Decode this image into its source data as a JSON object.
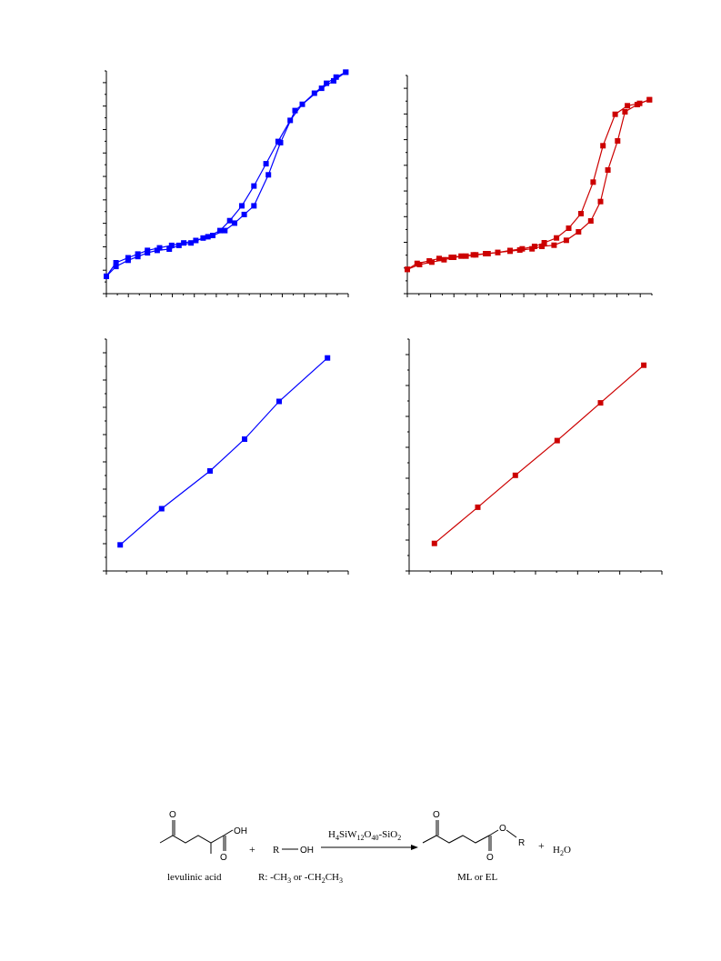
{
  "page": {
    "background": "#ffffff"
  },
  "chart_data": [
    {
      "type": "line",
      "title": "",
      "xlabel": "",
      "ylabel": "",
      "xlim": [
        0,
        1.0
      ],
      "ylim": [
        0,
        9
      ],
      "grid": false,
      "ticks_labeled": false,
      "color": "#0000ff",
      "marker": "square",
      "series": [
        {
          "values": [
            [
              0.0,
              0.7
            ],
            [
              0.04,
              1.25
            ],
            [
              0.09,
              1.45
            ],
            [
              0.13,
              1.6
            ],
            [
              0.17,
              1.75
            ],
            [
              0.22,
              1.85
            ],
            [
              0.27,
              1.95
            ],
            [
              0.32,
              2.05
            ],
            [
              0.37,
              2.15
            ],
            [
              0.42,
              2.3
            ],
            [
              0.47,
              2.55
            ],
            [
              0.51,
              2.95
            ],
            [
              0.56,
              3.55
            ],
            [
              0.61,
              4.35
            ],
            [
              0.66,
              5.25
            ],
            [
              0.71,
              6.15
            ],
            [
              0.76,
              7.0
            ],
            [
              0.81,
              7.65
            ],
            [
              0.86,
              8.1
            ],
            [
              0.91,
              8.5
            ],
            [
              0.95,
              8.75
            ],
            [
              0.99,
              8.95
            ]
          ]
        },
        {
          "values": [
            [
              0.99,
              8.95
            ],
            [
              0.94,
              8.6
            ],
            [
              0.89,
              8.3
            ],
            [
              0.78,
              7.4
            ],
            [
              0.72,
              6.1
            ],
            [
              0.67,
              4.8
            ],
            [
              0.61,
              3.55
            ],
            [
              0.57,
              3.2
            ],
            [
              0.53,
              2.85
            ],
            [
              0.49,
              2.55
            ],
            [
              0.44,
              2.35
            ],
            [
              0.4,
              2.25
            ],
            [
              0.35,
              2.05
            ],
            [
              0.3,
              1.95
            ],
            [
              0.26,
              1.8
            ],
            [
              0.21,
              1.75
            ],
            [
              0.17,
              1.65
            ],
            [
              0.13,
              1.5
            ],
            [
              0.09,
              1.35
            ],
            [
              0.04,
              1.1
            ],
            [
              0.0,
              0.7
            ]
          ]
        }
      ]
    },
    {
      "type": "line",
      "title": "",
      "xlabel": "",
      "ylabel": "",
      "xlim": [
        0,
        1.0
      ],
      "ylim": [
        0,
        9
      ],
      "grid": false,
      "ticks_labeled": false,
      "color": "#cc0000",
      "marker": "square",
      "series": [
        {
          "values": [
            [
              0.0,
              1.0
            ],
            [
              0.04,
              1.25
            ],
            [
              0.09,
              1.35
            ],
            [
              0.13,
              1.45
            ],
            [
              0.18,
              1.5
            ],
            [
              0.22,
              1.55
            ],
            [
              0.27,
              1.6
            ],
            [
              0.32,
              1.65
            ],
            [
              0.37,
              1.7
            ],
            [
              0.42,
              1.78
            ],
            [
              0.47,
              1.85
            ],
            [
              0.52,
              1.95
            ],
            [
              0.56,
              2.1
            ],
            [
              0.61,
              2.3
            ],
            [
              0.66,
              2.7
            ],
            [
              0.71,
              3.3
            ],
            [
              0.76,
              4.6
            ],
            [
              0.8,
              6.1
            ],
            [
              0.85,
              7.4
            ],
            [
              0.9,
              7.75
            ],
            [
              0.95,
              7.85
            ],
            [
              0.99,
              8.0
            ]
          ]
        },
        {
          "values": [
            [
              0.99,
              8.0
            ],
            [
              0.94,
              7.8
            ],
            [
              0.89,
              7.5
            ],
            [
              0.86,
              6.3
            ],
            [
              0.82,
              5.1
            ],
            [
              0.79,
              3.8
            ],
            [
              0.75,
              3.0
            ],
            [
              0.7,
              2.55
            ],
            [
              0.65,
              2.2
            ],
            [
              0.6,
              2.0
            ],
            [
              0.55,
              1.95
            ],
            [
              0.51,
              1.85
            ],
            [
              0.46,
              1.8
            ],
            [
              0.42,
              1.75
            ],
            [
              0.37,
              1.7
            ],
            [
              0.33,
              1.65
            ],
            [
              0.28,
              1.6
            ],
            [
              0.24,
              1.55
            ],
            [
              0.19,
              1.5
            ],
            [
              0.15,
              1.4
            ],
            [
              0.1,
              1.3
            ],
            [
              0.05,
              1.2
            ],
            [
              0.0,
              1.0
            ]
          ]
        }
      ]
    },
    {
      "type": "line",
      "title": "",
      "xlabel": "",
      "ylabel": "",
      "xlim": [
        0,
        0.35
      ],
      "ylim": [
        0,
        8
      ],
      "grid": false,
      "ticks_labeled": false,
      "color": "#0000ff",
      "marker": "square",
      "series": [
        {
          "values": [
            [
              0.02,
              0.9
            ],
            [
              0.08,
              2.15
            ],
            [
              0.15,
              3.45
            ],
            [
              0.2,
              4.55
            ],
            [
              0.25,
              5.85
            ],
            [
              0.32,
              7.35
            ]
          ]
        }
      ]
    },
    {
      "type": "line",
      "title": "",
      "xlabel": "",
      "ylabel": "",
      "xlim": [
        0,
        0.35
      ],
      "ylim": [
        0,
        8
      ],
      "grid": false,
      "ticks_labeled": false,
      "color": "#cc0000",
      "marker": "square",
      "series": [
        {
          "values": [
            [
              0.035,
              0.95
            ],
            [
              0.095,
              2.2
            ],
            [
              0.147,
              3.3
            ],
            [
              0.205,
              4.5
            ],
            [
              0.265,
              5.8
            ],
            [
              0.325,
              7.1
            ]
          ]
        }
      ]
    }
  ],
  "scheme": {
    "reactant_label": "levulinic acid",
    "reactant_oh": "OH",
    "reactant_o_top": "O",
    "reactant_o_bottom": "O",
    "plus1": "+",
    "alcohol_r": "R",
    "alcohol_oh": "OH",
    "r_group_label": "R: -CH",
    "r_group_sub1": "3",
    "r_group_mid": " or -CH",
    "r_group_sub2": "2",
    "r_group_mid2": "CH",
    "r_group_sub3": "3",
    "catalyst_h": "H",
    "catalyst_sub1": "4",
    "catalyst_siw": "SiW",
    "catalyst_sub2": "12",
    "catalyst_o": "O",
    "catalyst_sub3": "40",
    "catalyst_rest": "-SiO",
    "catalyst_sub4": "2",
    "product_o_top": "O",
    "product_o_ester": "O",
    "product_o_bottom": "O",
    "product_r": "R",
    "product_label": "ML or EL",
    "plus2": "+",
    "water_h": "H",
    "water_sub": "2",
    "water_o": "O"
  }
}
